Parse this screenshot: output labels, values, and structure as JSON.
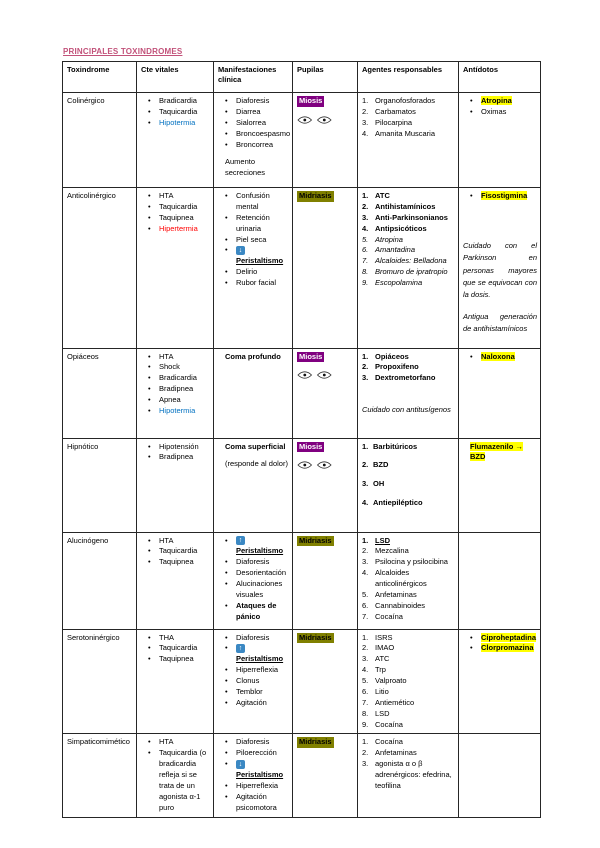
{
  "page": {
    "title": "PRINCIPALES TOXINDROMES"
  },
  "colors": {
    "title_pink": "#c2527a",
    "vital_blue": "#0070c0",
    "vital_red": "#ff0000",
    "miosis_bg": "#800080",
    "midriasis_bg": "#808000",
    "antidote_highlight": "#ffff00",
    "arrow_icon_blue": "#3b88c3"
  },
  "table": {
    "headers": [
      "Toxindrome",
      "Cte vitales",
      "Manifestaciones clínica",
      "Pupilas",
      "Agentes responsables",
      "Antídotos"
    ],
    "rows": [
      {
        "slug": "colinergico",
        "toxindrome": "Colinérgico",
        "vitals": [
          {
            "t": "Bradicardia"
          },
          {
            "t": "Taquicardia"
          },
          {
            "t": "Hipotermia",
            "color": "blue"
          }
        ],
        "manifestations": [
          {
            "t": "Diaforesis"
          },
          {
            "t": "Diarrea"
          },
          {
            "t": "Sialorrea"
          },
          {
            "t": "Broncoespasmo"
          },
          {
            "t": "Broncorrea"
          },
          {
            "t": "Aumento secreciones",
            "nobullet": true,
            "gap": true
          }
        ],
        "pupils": {
          "label": "Miosis",
          "kind": "miosis",
          "eyes": true
        },
        "agents": {
          "items": [
            {
              "t": "Organofosforados"
            },
            {
              "t": "Carbamatos"
            },
            {
              "t": "Pilocarpina"
            },
            {
              "t": "Amanita Muscaria"
            }
          ]
        },
        "antidotes": {
          "items": [
            {
              "t": "Atropina",
              "hl": true,
              "b": true
            },
            {
              "t": "Oximas"
            }
          ]
        }
      },
      {
        "slug": "anticolinergico",
        "toxindrome": "Anticolinérgico",
        "vitals": [
          {
            "t": "HTA"
          },
          {
            "t": "Taquicardia"
          },
          {
            "t": "Taquipnea"
          },
          {
            "t": "Hipertermia",
            "color": "red"
          }
        ],
        "manifestations": [
          {
            "t": "Confusión mental"
          },
          {
            "t": "Retención urinaria"
          },
          {
            "t": "Piel seca"
          },
          {
            "t": "Peristaltismo",
            "arrow": "down",
            "b": true,
            "u": true
          },
          {
            "t": "Delirio"
          },
          {
            "t": "Rubor facial"
          }
        ],
        "pupils": {
          "label": "Midriasis",
          "kind": "midriasis",
          "eyes": false
        },
        "agents": {
          "items": [
            {
              "t": "ATC",
              "b": true
            },
            {
              "t": "Antihistamínicos",
              "b": true
            },
            {
              "t": "Anti-Parkinsonianos",
              "b": true
            },
            {
              "t": "Antipsicóticos",
              "b": true
            },
            {
              "t": "Atropina",
              "i": true
            },
            {
              "t": "Amantadina",
              "i": true
            },
            {
              "t": "Alcaloides: Belladona",
              "i": true
            },
            {
              "t": "Bromuro de ipratropio",
              "i": true
            },
            {
              "t": "Escopolamina",
              "i": true
            }
          ]
        },
        "antidotes": {
          "items": [
            {
              "t": "Fisostigmina",
              "hl": true,
              "b": true
            }
          ],
          "notes": [
            "Cuidado con el Parkinson en personas mayores que se equivocan con la dosis.",
            "Antigua generación de antihistamínicos"
          ]
        }
      },
      {
        "slug": "opiaceos",
        "toxindrome": "Opiáceos",
        "vitals": [
          {
            "t": "HTA"
          },
          {
            "t": "Shock"
          },
          {
            "t": "Bradicardia"
          },
          {
            "t": "Bradipnea"
          },
          {
            "t": "Apnea"
          },
          {
            "t": "Hipotermia",
            "color": "blue"
          }
        ],
        "manifestations": [
          {
            "t": "Coma profundo",
            "b": true,
            "nobullet": true
          }
        ],
        "pupils": {
          "label": "Miosis",
          "kind": "miosis",
          "eyes": true
        },
        "agents": {
          "items": [
            {
              "t": "Opiáceos",
              "b": true
            },
            {
              "t": "Propoxifeno",
              "b": true
            },
            {
              "t": "Dextrometorfano",
              "b": true
            }
          ],
          "notes": [
            "Cuidado con antitusígenos"
          ]
        },
        "antidotes": {
          "items": [
            {
              "t": "Naloxona",
              "hl": true,
              "b": true
            }
          ]
        }
      },
      {
        "slug": "hipnotico",
        "toxindrome": "Hipnótico",
        "vitals": [
          {
            "t": "Hipotensión"
          },
          {
            "t": "Bradipnea"
          }
        ],
        "manifestations": [
          {
            "t": "Coma superficial",
            "b": true,
            "nobullet": true
          },
          {
            "t": "(responde al dolor)",
            "nobullet": true,
            "gap": true
          }
        ],
        "pupils": {
          "label": "Miosis",
          "kind": "miosis",
          "eyes": true
        },
        "agents": {
          "spaced": true,
          "items": [
            {
              "t": "Barbitúricos",
              "b": true
            },
            {
              "t": "BZD",
              "b": true
            },
            {
              "t": "OH",
              "b": true
            },
            {
              "t": "Antiepiléptico",
              "b": true
            }
          ]
        },
        "antidotes": {
          "items": [
            {
              "t": "Flumazenilo → BZD",
              "hl": true,
              "b": true,
              "nobullet": true
            }
          ]
        }
      },
      {
        "slug": "alucinogeno",
        "toxindrome": "Alucinógeno",
        "vitals": [
          {
            "t": "HTA"
          },
          {
            "t": "Taquicardia"
          },
          {
            "t": "Taquipnea"
          }
        ],
        "manifestations": [
          {
            "t": "Peristaltismo",
            "arrow": "up",
            "b": true,
            "u": true
          },
          {
            "t": "Diaforesis"
          },
          {
            "t": "Desorientación"
          },
          {
            "t": "Alucinaciones visuales"
          },
          {
            "t": "Ataques de pánico",
            "b": true
          }
        ],
        "pupils": {
          "label": "Midriasis",
          "kind": "midriasis",
          "eyes": false
        },
        "agents": {
          "items": [
            {
              "t": "LSD",
              "b": true,
              "u": true
            },
            {
              "t": "Mezcalina"
            },
            {
              "t": "Psilocina y psilocibina"
            },
            {
              "t": "Alcaloides anticolinérgicos"
            },
            {
              "t": "Anfetaminas"
            },
            {
              "t": "Cannabinoides"
            },
            {
              "t": "Cocaína"
            }
          ]
        },
        "antidotes": {
          "items": []
        }
      },
      {
        "slug": "serotoninergico",
        "toxindrome": "Serotoninérgico",
        "vitals": [
          {
            "t": "THA"
          },
          {
            "t": "Taquicardia"
          },
          {
            "t": "Taquipnea"
          }
        ],
        "manifestations": [
          {
            "t": "Diaforesis"
          },
          {
            "t": "Peristaltismo",
            "arrow": "up",
            "b": true,
            "u": true
          },
          {
            "t": "Hiperreflexia"
          },
          {
            "t": "Clonus"
          },
          {
            "t": "Temblor"
          },
          {
            "t": "Agitación"
          }
        ],
        "pupils": {
          "label": "Midriasis",
          "kind": "midriasis",
          "eyes": false
        },
        "agents": {
          "items": [
            {
              "t": "ISRS"
            },
            {
              "t": "IMAO"
            },
            {
              "t": "ATC"
            },
            {
              "t": "Trp"
            },
            {
              "t": "Valproato"
            },
            {
              "t": "Litio"
            },
            {
              "t": "Antiemético"
            },
            {
              "t": "LSD"
            },
            {
              "t": "Cocaína"
            }
          ]
        },
        "antidotes": {
          "items": [
            {
              "t": "Ciproheptadina",
              "hl": true,
              "b": true
            },
            {
              "t": "Clorpromazina",
              "hl": true,
              "b": true
            }
          ]
        }
      },
      {
        "slug": "simpaticomimetico",
        "toxindrome": "Simpaticomimético",
        "vitals": [
          {
            "t": "HTA"
          },
          {
            "t": "Taquicardia (o bradicardia refleja si se trata de un agonista α-1 puro"
          }
        ],
        "manifestations": [
          {
            "t": "Diaforesis"
          },
          {
            "t": "Piloerección"
          },
          {
            "t": "Peristaltismo",
            "arrow": "down",
            "b": true,
            "u": true
          },
          {
            "t": "Hiperreflexia"
          },
          {
            "t": "Agitación psicomotora"
          }
        ],
        "pupils": {
          "label": "Midriasis",
          "kind": "midriasis",
          "eyes": false
        },
        "agents": {
          "items": [
            {
              "t": "Cocaína"
            },
            {
              "t": "Anfetaminas"
            },
            {
              "t": "agonista α o β adrenérgicos: efedrina, teofilina"
            }
          ]
        },
        "antidotes": {
          "items": []
        }
      }
    ]
  }
}
